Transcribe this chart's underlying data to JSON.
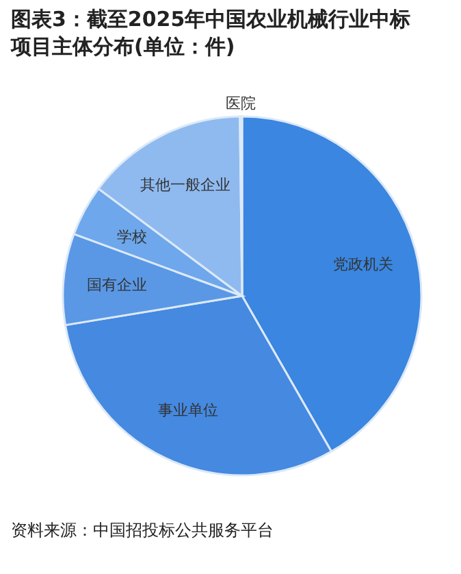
{
  "chart_data": {
    "type": "pie",
    "title": "图表3：截至2025年中国农业机械行业中标项目主体分布(单位：件)",
    "categories": [
      "党政机关",
      "事业单位",
      "国有企业",
      "学校",
      "其他一般企业",
      "医院"
    ],
    "values": [
      41.7,
      30.7,
      8.2,
      4.6,
      14.6,
      0.2
    ],
    "colors": [
      "#3a86e0",
      "#4589e0",
      "#5a98e6",
      "#6ea7eb",
      "#8fbaf0",
      "#b8d4f5"
    ],
    "annotations": [
      "资料来源：中国招投标公共服务平台"
    ]
  }
}
